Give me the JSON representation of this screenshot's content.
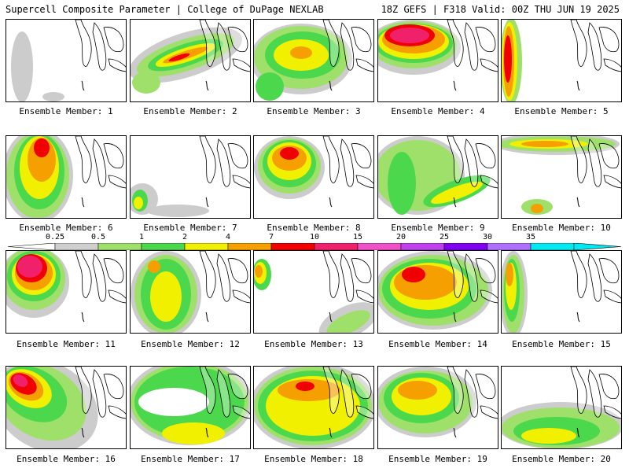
{
  "header": {
    "title_left": "Supercell Composite Parameter | College of DuPage NEXLAB",
    "title_right": "18Z GEFS | F318 Valid: 00Z THU JUN 19 2025"
  },
  "members": [
    {
      "label": "Ensemble Member: 1"
    },
    {
      "label": "Ensemble Member: 2"
    },
    {
      "label": "Ensemble Member: 3"
    },
    {
      "label": "Ensemble Member: 4"
    },
    {
      "label": "Ensemble Member: 5"
    },
    {
      "label": "Ensemble Member: 6"
    },
    {
      "label": "Ensemble Member: 7"
    },
    {
      "label": "Ensemble Member: 8"
    },
    {
      "label": "Ensemble Member: 9"
    },
    {
      "label": "Ensemble Member: 10"
    },
    {
      "label": "Ensemble Member: 11"
    },
    {
      "label": "Ensemble Member: 12"
    },
    {
      "label": "Ensemble Member: 13"
    },
    {
      "label": "Ensemble Member: 14"
    },
    {
      "label": "Ensemble Member: 15"
    },
    {
      "label": "Ensemble Member: 16"
    },
    {
      "label": "Ensemble Member: 17"
    },
    {
      "label": "Ensemble Member: 18"
    },
    {
      "label": "Ensemble Member: 19"
    },
    {
      "label": "Ensemble Member: 20"
    }
  ],
  "colorbar": {
    "labels": [
      "0.25",
      "0.5",
      "1",
      "2",
      "4",
      "7",
      "10",
      "15",
      "20",
      "25",
      "30",
      "35"
    ],
    "colors": [
      "#cfcfcf",
      "#9fe06a",
      "#4cd84c",
      "#f0f000",
      "#f5a000",
      "#f00000",
      "#f0206a",
      "#f050c8",
      "#c040f0",
      "#8000f0",
      "#b070ff",
      "#00e8f0"
    ]
  },
  "palette": {
    "gray": "#cccccc",
    "light_green": "#9fe06a",
    "green": "#4cd84c",
    "yellow": "#f0f000",
    "orange": "#f5a000",
    "red": "#f00000",
    "magenta": "#f0206a"
  }
}
